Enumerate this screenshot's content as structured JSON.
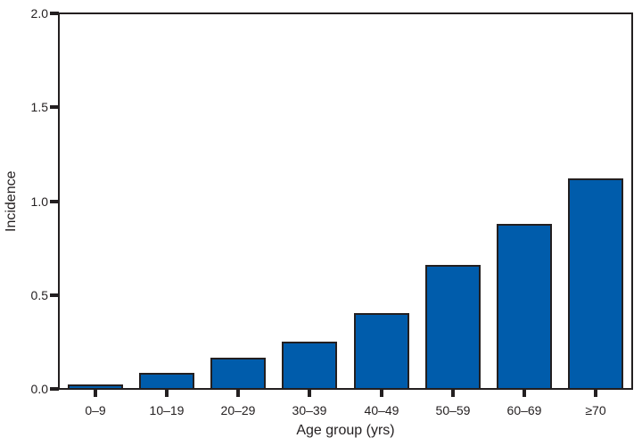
{
  "chart_data": {
    "type": "bar",
    "title": "",
    "categories": [
      "0–9",
      "10–19",
      "20–29",
      "30–39",
      "40–49",
      "50–59",
      "60–69",
      "≥70"
    ],
    "values": [
      0.02,
      0.08,
      0.16,
      0.25,
      0.4,
      0.66,
      0.88,
      1.12
    ],
    "xlabel": "Age group (yrs)",
    "ylabel": "Incidence",
    "ylim": [
      0,
      2.0
    ],
    "yticks": [
      0.0,
      0.5,
      1.0,
      1.5,
      2.0
    ],
    "ytick_labels": [
      "0.0",
      "0.5",
      "1.0",
      "1.5",
      "2.0"
    ],
    "grid": false,
    "legend": "none",
    "plot_border": "full-box",
    "colors": {
      "bar_fill": "#005cab",
      "bar_border": "#231f20",
      "axis": "#231f20",
      "text": "#231f20",
      "background": "#ffffff"
    }
  }
}
